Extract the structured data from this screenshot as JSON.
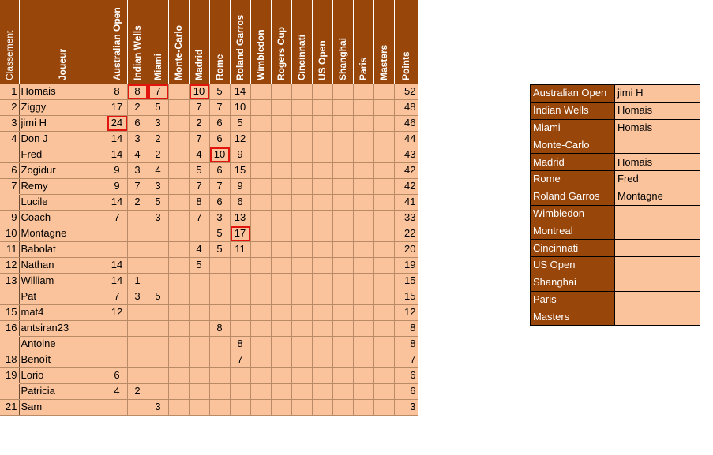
{
  "header": {
    "rank": "Classement",
    "player": "Joueur",
    "tournaments": [
      "Australian Open",
      "Indian Wells",
      "Miami",
      "Monte-Carlo",
      "Madrid",
      "Rome",
      "Roland Garros",
      "Wimbledon",
      "Rogers Cup",
      "Cincinnati",
      "US Open",
      "Shanghai",
      "Paris",
      "Masters"
    ],
    "points": "Points"
  },
  "rows": [
    {
      "rank": "1",
      "name": "Homais",
      "scores": [
        "8",
        "8",
        "7",
        "",
        "10",
        "5",
        "14",
        "",
        "",
        "",
        "",
        "",
        "",
        ""
      ],
      "points": "52"
    },
    {
      "rank": "2",
      "name": "Ziggy",
      "scores": [
        "17",
        "2",
        "5",
        "",
        "7",
        "7",
        "10",
        "",
        "",
        "",
        "",
        "",
        "",
        ""
      ],
      "points": "48"
    },
    {
      "rank": "3",
      "name": "jimi H",
      "scores": [
        "24",
        "6",
        "3",
        "",
        "2",
        "6",
        "5",
        "",
        "",
        "",
        "",
        "",
        "",
        ""
      ],
      "points": "46"
    },
    {
      "rank": "4",
      "name": "Don J",
      "scores": [
        "14",
        "3",
        "2",
        "",
        "7",
        "6",
        "12",
        "",
        "",
        "",
        "",
        "",
        "",
        ""
      ],
      "points": "44"
    },
    {
      "rank": "",
      "name": "Fred",
      "scores": [
        "14",
        "4",
        "2",
        "",
        "4",
        "10",
        "9",
        "",
        "",
        "",
        "",
        "",
        "",
        ""
      ],
      "points": "43"
    },
    {
      "rank": "6",
      "name": "Zogidur",
      "scores": [
        "9",
        "3",
        "4",
        "",
        "5",
        "6",
        "15",
        "",
        "",
        "",
        "",
        "",
        "",
        ""
      ],
      "points": "42"
    },
    {
      "rank": "7",
      "name": "Remy",
      "scores": [
        "9",
        "7",
        "3",
        "",
        "7",
        "7",
        "9",
        "",
        "",
        "",
        "",
        "",
        "",
        ""
      ],
      "points": "42"
    },
    {
      "rank": "",
      "name": "Lucile",
      "scores": [
        "14",
        "2",
        "5",
        "",
        "8",
        "6",
        "6",
        "",
        "",
        "",
        "",
        "",
        "",
        ""
      ],
      "points": "41"
    },
    {
      "rank": "9",
      "name": "Coach",
      "scores": [
        "7",
        "",
        "3",
        "",
        "7",
        "3",
        "13",
        "",
        "",
        "",
        "",
        "",
        "",
        ""
      ],
      "points": "33"
    },
    {
      "rank": "10",
      "name": "Montagne",
      "scores": [
        "",
        "",
        "",
        "",
        "",
        "5",
        "17",
        "",
        "",
        "",
        "",
        "",
        "",
        ""
      ],
      "points": "22"
    },
    {
      "rank": "11",
      "name": "Babolat",
      "scores": [
        "",
        "",
        "",
        "",
        "4",
        "5",
        "11",
        "",
        "",
        "",
        "",
        "",
        "",
        ""
      ],
      "points": "20"
    },
    {
      "rank": "12",
      "name": "Nathan",
      "scores": [
        "14",
        "",
        "",
        "",
        "5",
        "",
        "",
        "",
        "",
        "",
        "",
        "",
        "",
        ""
      ],
      "points": "19"
    },
    {
      "rank": "13",
      "name": "William",
      "scores": [
        "14",
        "1",
        "",
        "",
        "",
        "",
        "",
        "",
        "",
        "",
        "",
        "",
        "",
        ""
      ],
      "points": "15"
    },
    {
      "rank": "",
      "name": "Pat",
      "scores": [
        "7",
        "3",
        "5",
        "",
        "",
        "",
        "",
        "",
        "",
        "",
        "",
        "",
        "",
        ""
      ],
      "points": "15"
    },
    {
      "rank": "15",
      "name": "mat4",
      "scores": [
        "12",
        "",
        "",
        "",
        "",
        "",
        "",
        "",
        "",
        "",
        "",
        "",
        "",
        ""
      ],
      "points": "12"
    },
    {
      "rank": "16",
      "name": "antsiran23",
      "scores": [
        "",
        "",
        "",
        "",
        "",
        "8",
        "",
        "",
        "",
        "",
        "",
        "",
        "",
        ""
      ],
      "points": "8"
    },
    {
      "rank": "",
      "name": "Antoine",
      "scores": [
        "",
        "",
        "",
        "",
        "",
        "",
        "8",
        "",
        "",
        "",
        "",
        "",
        "",
        ""
      ],
      "points": "8"
    },
    {
      "rank": "18",
      "name": "Benoît",
      "scores": [
        "",
        "",
        "",
        "",
        "",
        "",
        "7",
        "",
        "",
        "",
        "",
        "",
        "",
        ""
      ],
      "points": "7"
    },
    {
      "rank": "19",
      "name": "Lorio",
      "scores": [
        "6",
        "",
        "",
        "",
        "",
        "",
        "",
        "",
        "",
        "",
        "",
        "",
        "",
        ""
      ],
      "points": "6"
    },
    {
      "rank": "",
      "name": "Patricia",
      "scores": [
        "4",
        "2",
        "",
        "",
        "",
        "",
        "",
        "",
        "",
        "",
        "",
        "",
        "",
        ""
      ],
      "points": "6"
    },
    {
      "rank": "21",
      "name": "Sam",
      "scores": [
        "",
        "",
        "3",
        "",
        "",
        "",
        "",
        "",
        "",
        "",
        "",
        "",
        "",
        ""
      ],
      "points": "3"
    }
  ],
  "highlighted_cells": [
    {
      "row": 0,
      "col": 1
    },
    {
      "row": 0,
      "col": 2
    },
    {
      "row": 0,
      "col": 4
    },
    {
      "row": 2,
      "col": 0
    },
    {
      "row": 4,
      "col": 5
    },
    {
      "row": 9,
      "col": 6
    }
  ],
  "winners": [
    {
      "tournament": "Australian Open",
      "winner": "jimi H"
    },
    {
      "tournament": "Indian Wells",
      "winner": "Homais"
    },
    {
      "tournament": "Miami",
      "winner": "Homais"
    },
    {
      "tournament": "Monte-Carlo",
      "winner": ""
    },
    {
      "tournament": "Madrid",
      "winner": "Homais"
    },
    {
      "tournament": "Rome",
      "winner": "Fred"
    },
    {
      "tournament": "Roland Garros",
      "winner": "Montagne"
    },
    {
      "tournament": "Wimbledon",
      "winner": ""
    },
    {
      "tournament": "Montreal",
      "winner": ""
    },
    {
      "tournament": "Cincinnati",
      "winner": ""
    },
    {
      "tournament": "US Open",
      "winner": ""
    },
    {
      "tournament": "Shanghai",
      "winner": ""
    },
    {
      "tournament": "Paris",
      "winner": ""
    },
    {
      "tournament": "Masters",
      "winner": ""
    }
  ],
  "colors": {
    "header_bg": "#99460a",
    "cell_bg": "#fac39b",
    "highlight": "#e3140e"
  }
}
